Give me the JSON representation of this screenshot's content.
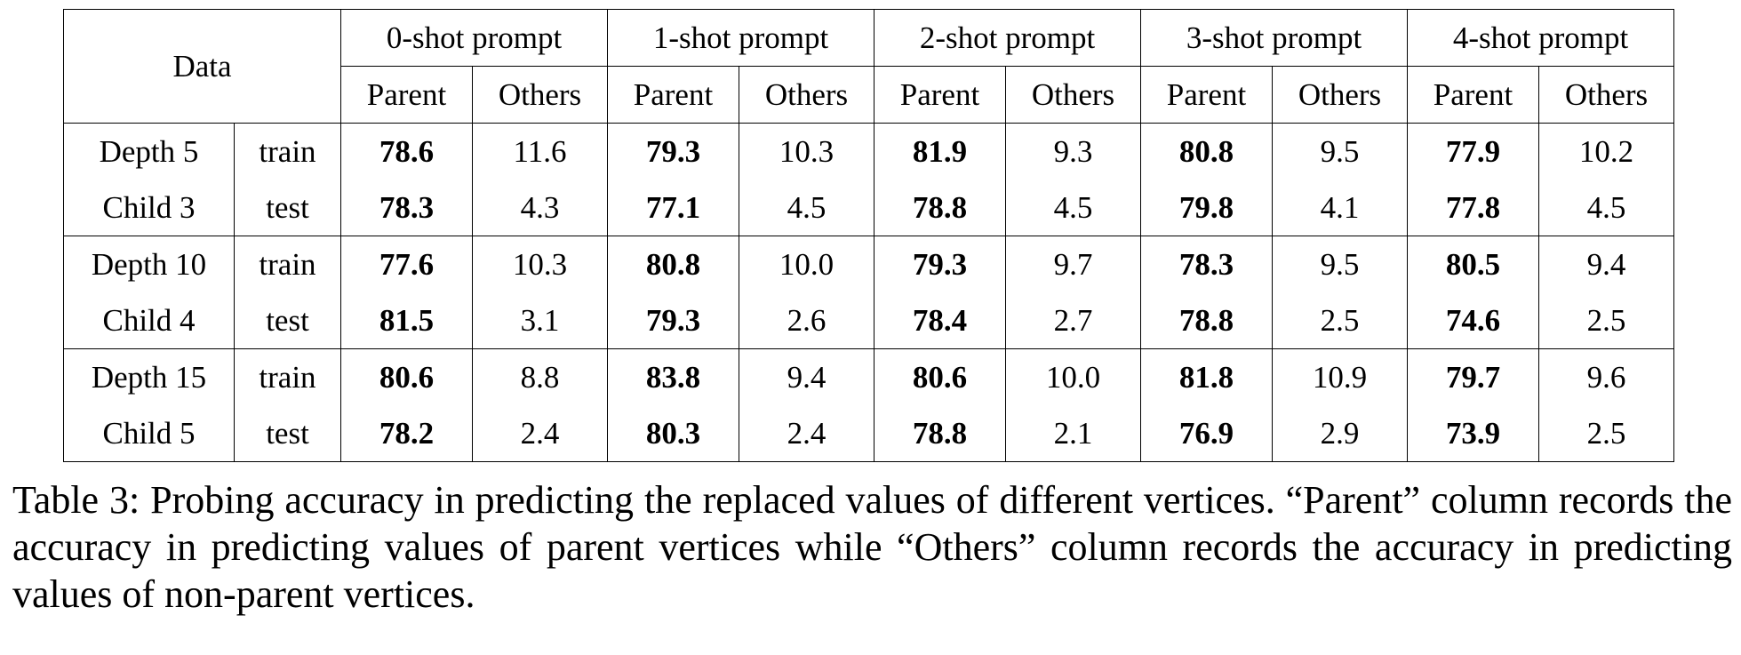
{
  "table": {
    "data_header": "Data",
    "prompt_headers": [
      "0-shot prompt",
      "1-shot prompt",
      "2-shot prompt",
      "3-shot prompt",
      "4-shot prompt"
    ],
    "sub_headers": [
      "Parent",
      "Others",
      "Parent",
      "Others",
      "Parent",
      "Others",
      "Parent",
      "Others",
      "Parent",
      "Others"
    ],
    "rows": [
      {
        "group": "Depth 5",
        "split": "train",
        "values": [
          "78.6",
          "11.6",
          "79.3",
          "10.3",
          "81.9",
          "9.3",
          "80.8",
          "9.5",
          "77.9",
          "10.2"
        ]
      },
      {
        "group": "Child 3",
        "split": "test",
        "values": [
          "78.3",
          "4.3",
          "77.1",
          "4.5",
          "78.8",
          "4.5",
          "79.8",
          "4.1",
          "77.8",
          "4.5"
        ]
      },
      {
        "group": "Depth 10",
        "split": "train",
        "values": [
          "77.6",
          "10.3",
          "80.8",
          "10.0",
          "79.3",
          "9.7",
          "78.3",
          "9.5",
          "80.5",
          "9.4"
        ]
      },
      {
        "group": "Child 4",
        "split": "test",
        "values": [
          "81.5",
          "3.1",
          "79.3",
          "2.6",
          "78.4",
          "2.7",
          "78.8",
          "2.5",
          "74.6",
          "2.5"
        ]
      },
      {
        "group": "Depth 15",
        "split": "train",
        "values": [
          "80.6",
          "8.8",
          "83.8",
          "9.4",
          "80.6",
          "10.0",
          "81.8",
          "10.9",
          "79.7",
          "9.6"
        ]
      },
      {
        "group": "Child 5",
        "split": "test",
        "values": [
          "78.2",
          "2.4",
          "80.3",
          "2.4",
          "78.8",
          "2.1",
          "76.9",
          "2.9",
          "73.9",
          "2.5"
        ]
      }
    ]
  },
  "caption": "Table 3: Probing accuracy in predicting the replaced values of different vertices. “Parent” column records the accuracy in predicting values of parent vertices while “Others” column records the ac­curacy in predicting values of non-parent vertices."
}
